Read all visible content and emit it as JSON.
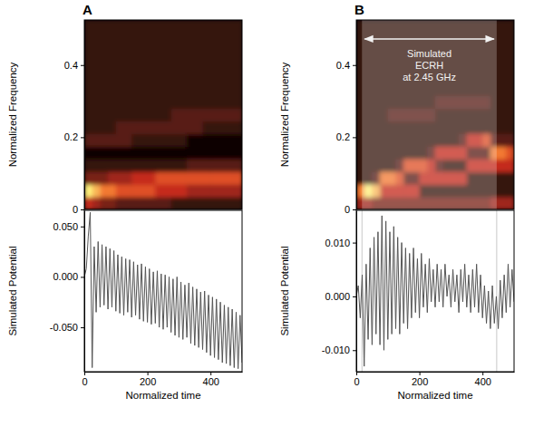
{
  "chart_data": [
    {
      "type": "heatmap",
      "title": "A",
      "ylabel": "Normalized Frequency",
      "xlim": [
        0,
        500
      ],
      "ylim": [
        0,
        0.525
      ],
      "yticks": [
        0,
        0.2,
        0.4
      ],
      "tick_labels": "y",
      "zlim": [
        0,
        9
      ],
      "x_edges": [
        0,
        25,
        50,
        75,
        100,
        125,
        150,
        175,
        200,
        225,
        250,
        275,
        300,
        325,
        350,
        375,
        400,
        425,
        450,
        475,
        500
      ],
      "y_edges": [
        0,
        0.035,
        0.07,
        0.105,
        0.14,
        0.175,
        0.21,
        0.245,
        0.28,
        0.315,
        0.35,
        0.385,
        0.42,
        0.455,
        0.49,
        0.525
      ],
      "z": [
        [
          5,
          4,
          3,
          3,
          2,
          2,
          2,
          2,
          2,
          2,
          2,
          1,
          1,
          1,
          1,
          1,
          1,
          1,
          1,
          1
        ],
        [
          9,
          8,
          7,
          7,
          6,
          6,
          6,
          6,
          6,
          5,
          5,
          5,
          5,
          4,
          4,
          4,
          4,
          4,
          4,
          4
        ],
        [
          3,
          3,
          3,
          4,
          4,
          4,
          5,
          5,
          5,
          6,
          6,
          6,
          6,
          6,
          6,
          6,
          6,
          6,
          6,
          6
        ],
        [
          1,
          1,
          1,
          1,
          1,
          1,
          1,
          1,
          1,
          1,
          1,
          1,
          1,
          2,
          2,
          2,
          2,
          2,
          2,
          2
        ],
        [
          0,
          0,
          0,
          0,
          0,
          0,
          0,
          0,
          0,
          0,
          0,
          0,
          0,
          0,
          0,
          0,
          0,
          0,
          0,
          0
        ],
        [
          2,
          2,
          2,
          2,
          2,
          2,
          1,
          1,
          1,
          1,
          1,
          1,
          1,
          0,
          0,
          0,
          0,
          0,
          0,
          0
        ],
        [
          1,
          1,
          1,
          1,
          2,
          2,
          2,
          2,
          2,
          2,
          2,
          2,
          2,
          2,
          2,
          1,
          1,
          1,
          1,
          1
        ],
        [
          1,
          1,
          1,
          1,
          1,
          1,
          1,
          1,
          1,
          1,
          1,
          2,
          2,
          2,
          2,
          2,
          2,
          2,
          2,
          2
        ],
        [
          1,
          1,
          1,
          1,
          1,
          1,
          1,
          1,
          1,
          1,
          1,
          1,
          1,
          1,
          1,
          1,
          1,
          1,
          1,
          1
        ],
        [
          1,
          1,
          1,
          1,
          1,
          1,
          1,
          1,
          1,
          1,
          1,
          1,
          1,
          1,
          1,
          1,
          1,
          1,
          1,
          1
        ],
        [
          1,
          1,
          1,
          1,
          1,
          1,
          1,
          1,
          1,
          1,
          1,
          1,
          1,
          1,
          1,
          1,
          1,
          1,
          1,
          1
        ],
        [
          1,
          1,
          1,
          1,
          1,
          1,
          1,
          1,
          1,
          1,
          1,
          1,
          1,
          1,
          1,
          1,
          1,
          1,
          1,
          1
        ],
        [
          1,
          1,
          1,
          1,
          1,
          1,
          1,
          1,
          1,
          1,
          1,
          1,
          1,
          1,
          1,
          1,
          1,
          1,
          1,
          1
        ],
        [
          1,
          1,
          1,
          1,
          1,
          1,
          1,
          1,
          1,
          1,
          1,
          1,
          1,
          1,
          1,
          1,
          1,
          1,
          1,
          1
        ],
        [
          1,
          1,
          1,
          1,
          1,
          1,
          1,
          1,
          1,
          1,
          1,
          1,
          1,
          1,
          1,
          1,
          1,
          1,
          1,
          1
        ]
      ]
    },
    {
      "type": "line",
      "xlabel": "Normalized time",
      "ylabel": "Simulated Potential",
      "color": "#555555",
      "xlim": [
        0,
        500
      ],
      "xticks": [
        0,
        200,
        400
      ],
      "ylim": [
        -0.094,
        0.066
      ],
      "yticks": [
        {
          "value": 0.05,
          "label": "0.050"
        },
        {
          "value": 0,
          "label": "0.000"
        },
        {
          "value": -0.05,
          "label": "-0.050"
        }
      ],
      "x": [
        0,
        6.25,
        12.5,
        18.75,
        25,
        31.25,
        37.5,
        43.75,
        50,
        56.25,
        62.5,
        68.75,
        75,
        81.25,
        87.5,
        93.75,
        100,
        106.25,
        112.5,
        118.75,
        125,
        131.25,
        137.5,
        143.75,
        150,
        156.25,
        162.5,
        168.75,
        175,
        181.25,
        187.5,
        193.75,
        200,
        206.25,
        212.5,
        218.75,
        225,
        231.25,
        237.5,
        243.75,
        250,
        256.25,
        262.5,
        268.75,
        275,
        281.25,
        287.5,
        293.75,
        300,
        306.25,
        312.5,
        318.75,
        325,
        331.25,
        337.5,
        343.75,
        350,
        356.25,
        362.5,
        368.75,
        375,
        381.25,
        387.5,
        393.75,
        400,
        406.25,
        412.5,
        418.75,
        425,
        431.25,
        437.5,
        443.75,
        450,
        456.25,
        462.5,
        468.75,
        475,
        481.25,
        487.5,
        493.75,
        500
      ],
      "values": [
        0,
        0.008,
        0.04,
        0.064,
        -0.09,
        0.03,
        -0.035,
        0.035,
        -0.03,
        0.032,
        -0.028,
        0.03,
        -0.032,
        0.028,
        -0.03,
        0.026,
        -0.034,
        0.022,
        -0.036,
        0.02,
        -0.038,
        0.018,
        -0.035,
        0.017,
        -0.04,
        0.015,
        -0.038,
        0.012,
        -0.042,
        0.013,
        -0.044,
        0.01,
        -0.045,
        0.008,
        -0.047,
        0.005,
        -0.046,
        0.006,
        -0.05,
        0.003,
        -0.052,
        0.002,
        -0.05,
        0,
        -0.055,
        -0.002,
        -0.058,
        0,
        -0.06,
        -0.005,
        -0.062,
        -0.008,
        -0.06,
        -0.006,
        -0.066,
        -0.01,
        -0.068,
        -0.012,
        -0.07,
        -0.015,
        -0.072,
        -0.014,
        -0.075,
        -0.018,
        -0.078,
        -0.02,
        -0.08,
        -0.022,
        -0.082,
        -0.025,
        -0.085,
        -0.028,
        -0.086,
        -0.03,
        -0.088,
        -0.032,
        -0.09,
        -0.035,
        -0.091,
        -0.038,
        -0.085
      ]
    },
    {
      "type": "heatmap",
      "title": "B",
      "ylabel": "Normalized Frequency",
      "xlim": [
        0,
        500
      ],
      "ylim": [
        0,
        0.525
      ],
      "yticks": [
        0,
        0.2,
        0.4
      ],
      "tick_labels": "y",
      "zlim": [
        0,
        9
      ],
      "x_edges": [
        0,
        25,
        50,
        75,
        100,
        125,
        150,
        175,
        200,
        225,
        250,
        275,
        300,
        325,
        350,
        375,
        400,
        425,
        450,
        475,
        500
      ],
      "y_edges": [
        0,
        0.035,
        0.07,
        0.105,
        0.14,
        0.175,
        0.21,
        0.245,
        0.28,
        0.315,
        0.35,
        0.385,
        0.42,
        0.455,
        0.49,
        0.525
      ],
      "z": [
        [
          4,
          4,
          3,
          3,
          3,
          3,
          3,
          3,
          3,
          3,
          3,
          3,
          3,
          3,
          3,
          3,
          3,
          4,
          4,
          4
        ],
        [
          7,
          9,
          8,
          5,
          5,
          5,
          5,
          5,
          1,
          1,
          1,
          1,
          1,
          1,
          1,
          1,
          1,
          1,
          1,
          1
        ],
        [
          1,
          1,
          2,
          7,
          7,
          6,
          2,
          2,
          5,
          5,
          5,
          5,
          5,
          5,
          1,
          1,
          1,
          1,
          1,
          1
        ],
        [
          1,
          1,
          1,
          1,
          1,
          2,
          6,
          6,
          6,
          5,
          2,
          1,
          1,
          1,
          5,
          5,
          5,
          5,
          5,
          5
        ],
        [
          1,
          1,
          1,
          1,
          1,
          1,
          1,
          1,
          1,
          2,
          5,
          5,
          5,
          5,
          2,
          2,
          2,
          7,
          7,
          6
        ],
        [
          1,
          1,
          1,
          1,
          1,
          1,
          1,
          1,
          1,
          1,
          1,
          1,
          1,
          2,
          5,
          5,
          6,
          2,
          2,
          2
        ],
        [
          1,
          1,
          1,
          1,
          1,
          1,
          1,
          1,
          1,
          1,
          1,
          1,
          1,
          1,
          1,
          1,
          1,
          1,
          1,
          1
        ],
        [
          1,
          1,
          1,
          1,
          2,
          2,
          2,
          2,
          2,
          2,
          1,
          1,
          1,
          1,
          1,
          1,
          1,
          1,
          1,
          1
        ],
        [
          1,
          1,
          1,
          1,
          1,
          1,
          1,
          1,
          1,
          1,
          2,
          2,
          2,
          2,
          2,
          2,
          2,
          1,
          1,
          1
        ],
        [
          1,
          1,
          1,
          1,
          1,
          1,
          1,
          1,
          1,
          1,
          1,
          1,
          1,
          1,
          1,
          1,
          1,
          1,
          1,
          1
        ],
        [
          1,
          1,
          1,
          1,
          1,
          1,
          1,
          1,
          1,
          1,
          1,
          1,
          1,
          1,
          1,
          1,
          1,
          1,
          1,
          1
        ],
        [
          1,
          1,
          1,
          1,
          1,
          1,
          1,
          1,
          1,
          1,
          1,
          1,
          1,
          1,
          1,
          1,
          1,
          1,
          1,
          1
        ],
        [
          1,
          1,
          1,
          1,
          1,
          1,
          1,
          1,
          1,
          1,
          1,
          1,
          1,
          1,
          1,
          1,
          1,
          1,
          1,
          1
        ],
        [
          1,
          1,
          1,
          1,
          1,
          1,
          1,
          1,
          1,
          1,
          1,
          1,
          1,
          1,
          1,
          1,
          1,
          1,
          1,
          1
        ],
        [
          1,
          1,
          1,
          1,
          1,
          1,
          1,
          1,
          1,
          1,
          1,
          1,
          1,
          1,
          1,
          1,
          1,
          1,
          1,
          1
        ]
      ],
      "annotations": [
        {
          "lines": [
            "Simulated",
            "ECRH",
            "at 2.45 GHz"
          ],
          "x_start": 18,
          "x_end": 445
        }
      ]
    },
    {
      "type": "line",
      "xlabel": "Normalized time",
      "ylabel": "Simulated Potential",
      "color": "#555555",
      "xlim": [
        0,
        500
      ],
      "xticks": [
        0,
        200,
        400
      ],
      "ylim": [
        -0.014,
        0.016
      ],
      "yticks": [
        {
          "value": 0.01,
          "label": "0.010"
        },
        {
          "value": 0,
          "label": "0.000"
        },
        {
          "value": -0.01,
          "label": "-0.010"
        }
      ],
      "x": [
        0,
        6.25,
        12.5,
        18.75,
        25,
        31.25,
        37.5,
        43.75,
        50,
        56.25,
        62.5,
        68.75,
        75,
        81.25,
        87.5,
        93.75,
        100,
        106.25,
        112.5,
        118.75,
        125,
        131.25,
        137.5,
        143.75,
        150,
        156.25,
        162.5,
        168.75,
        175,
        181.25,
        187.5,
        193.75,
        200,
        206.25,
        212.5,
        218.75,
        225,
        231.25,
        237.5,
        243.75,
        250,
        256.25,
        262.5,
        268.75,
        275,
        281.25,
        287.5,
        293.75,
        300,
        306.25,
        312.5,
        318.75,
        325,
        331.25,
        337.5,
        343.75,
        350,
        356.25,
        362.5,
        368.75,
        375,
        381.25,
        387.5,
        393.75,
        400,
        406.25,
        412.5,
        418.75,
        425,
        431.25,
        437.5,
        443.75,
        450,
        456.25,
        462.5,
        468.75,
        475,
        481.25,
        487.5,
        493.75,
        500
      ],
      "values": [
        0,
        0.002,
        -0.004,
        0.004,
        -0.013,
        0.006,
        -0.008,
        0.009,
        -0.009,
        0.011,
        -0.007,
        0.012,
        -0.009,
        0.015,
        -0.01,
        0.014,
        -0.008,
        0.012,
        -0.007,
        0.013,
        -0.006,
        0.011,
        -0.007,
        0.01,
        -0.005,
        0.009,
        -0.006,
        0.008,
        -0.004,
        0.009,
        -0.003,
        0.007,
        -0.004,
        0.008,
        -0.002,
        0.006,
        -0.003,
        0.007,
        -0.001,
        0.005,
        -0.002,
        0.006,
        -0.001,
        0.005,
        -0.002,
        0.006,
        0,
        0.004,
        -0.002,
        0.005,
        -0.001,
        0.004,
        -0.003,
        0.005,
        -0.001,
        0.006,
        -0.002,
        0.004,
        -0.003,
        0.005,
        -0.002,
        0.006,
        -0.003,
        0.004,
        -0.004,
        0.002,
        -0.005,
        0.001,
        -0.006,
        0.002,
        -0.005,
        0,
        -0.006,
        0.003,
        -0.004,
        0.004,
        -0.003,
        0.006,
        -0.002,
        0.005,
        -0.001
      ]
    }
  ]
}
